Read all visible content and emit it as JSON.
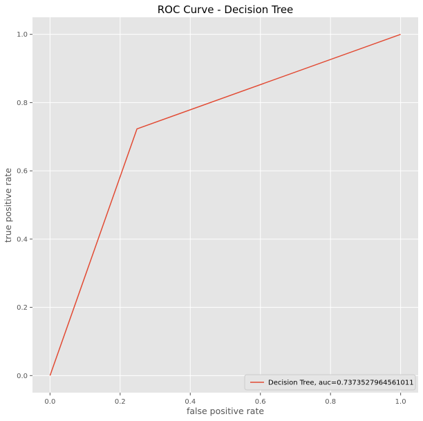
{
  "chart_data": {
    "type": "line",
    "title": "ROC Curve - Decision Tree",
    "xlabel": "false positive rate",
    "ylabel": "true positive rate",
    "xlim": [
      -0.05,
      1.05
    ],
    "ylim": [
      -0.05,
      1.05
    ],
    "xticks": [
      0.0,
      0.2,
      0.4,
      0.6,
      0.8,
      1.0
    ],
    "yticks": [
      0.0,
      0.2,
      0.4,
      0.6,
      0.8,
      1.0
    ],
    "xtick_labels": [
      "0.0",
      "0.2",
      "0.4",
      "0.6",
      "0.8",
      "1.0"
    ],
    "ytick_labels": [
      "0.0",
      "0.2",
      "0.4",
      "0.6",
      "0.8",
      "1.0"
    ],
    "grid": true,
    "legend_position": "lower-right",
    "series": [
      {
        "name": "Decision Tree, auc=0.7373527964561011",
        "color": "#e24a33",
        "x": [
          0.0,
          0.248,
          1.0
        ],
        "y": [
          0.0,
          0.723,
          1.0
        ]
      }
    ]
  },
  "colors": {
    "plot_background": "#e5e5e5",
    "grid": "#ffffff",
    "legend_background": "#e5e5e5",
    "legend_border": "#cccccc"
  }
}
